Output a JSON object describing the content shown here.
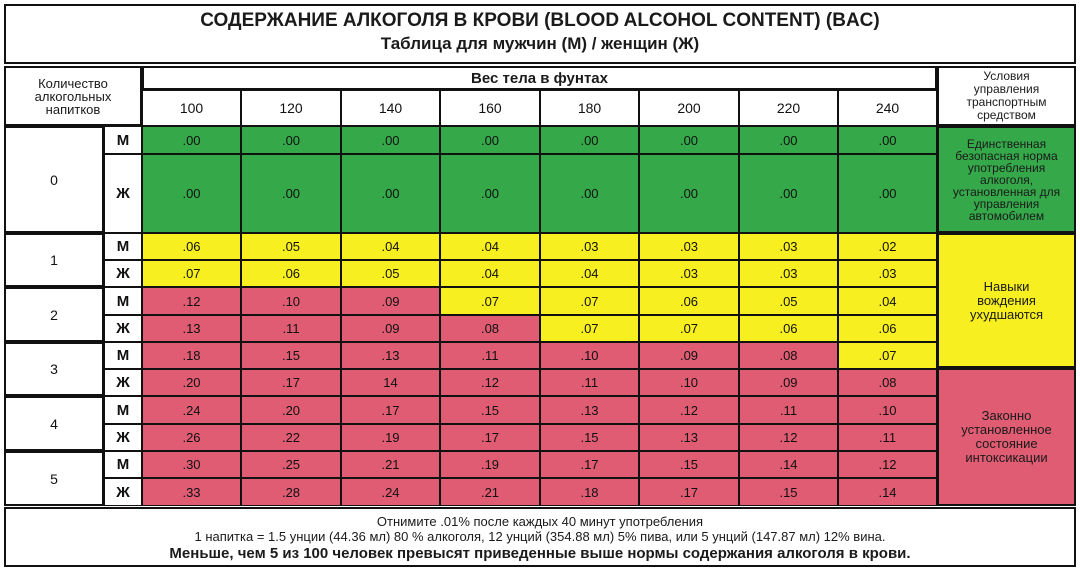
{
  "title": "СОДЕРЖАНИЕ АЛКОГОЛЯ В КРОВИ (BLOOD ALCOHOL CONTENT) (BAC)",
  "subtitle": "Таблица для мужчин (М) / женщин (Ж)",
  "header": {
    "drinks": "Количество алкогольных напитков",
    "weight": "Вес тела в фунтах",
    "conditions": "Условия управления транспортным средством",
    "weights": [
      "100",
      "120",
      "140",
      "160",
      "180",
      "200",
      "220",
      "240"
    ]
  },
  "gender_labels": [
    "М",
    "Ж"
  ],
  "rows": [
    {
      "drinks": "0",
      "m": [
        ".00",
        ".00",
        ".00",
        ".00",
        ".00",
        ".00",
        ".00",
        ".00"
      ],
      "f": [
        ".00",
        ".00",
        ".00",
        ".00",
        ".00",
        ".00",
        ".00",
        ".00"
      ]
    },
    {
      "drinks": "1",
      "m": [
        ".06",
        ".05",
        ".04",
        ".04",
        ".03",
        ".03",
        ".03",
        ".02"
      ],
      "f": [
        ".07",
        ".06",
        ".05",
        ".04",
        ".04",
        ".03",
        ".03",
        ".03"
      ]
    },
    {
      "drinks": "2",
      "m": [
        ".12",
        ".10",
        ".09",
        ".07",
        ".07",
        ".06",
        ".05",
        ".04"
      ],
      "f": [
        ".13",
        ".11",
        ".09",
        ".08",
        ".07",
        ".07",
        ".06",
        ".06"
      ]
    },
    {
      "drinks": "3",
      "m": [
        ".18",
        ".15",
        ".13",
        ".11",
        ".10",
        ".09",
        ".08",
        ".07"
      ],
      "f": [
        ".20",
        ".17",
        "14",
        ".12",
        ".11",
        ".10",
        ".09",
        ".08"
      ]
    },
    {
      "drinks": "4",
      "m": [
        ".24",
        ".20",
        ".17",
        ".15",
        ".13",
        ".12",
        ".11",
        ".10"
      ],
      "f": [
        ".26",
        ".22",
        ".19",
        ".17",
        ".15",
        ".13",
        ".12",
        ".11"
      ]
    },
    {
      "drinks": "5",
      "m": [
        ".30",
        ".25",
        ".21",
        ".19",
        ".17",
        ".15",
        ".14",
        ".12"
      ],
      "f": [
        ".33",
        ".28",
        ".24",
        ".21",
        ".18",
        ".17",
        ".15",
        ".14"
      ]
    }
  ],
  "zones": {
    "green": "Единственная безопасная норма употребления алкоголя, установленная для управления автомобилем",
    "yellow": "Навыки вождения ухудшаются",
    "red": "Законно установленное состояние интоксикации"
  },
  "footer": {
    "line1": "Отнимите .01% после каждых 40 минут употребления",
    "line2": "1 напитка = 1.5 унции (44.36 мл) 80 % алкоголя, 12 унций (354.88 мл) 5% пива, или 5 унций (147.87 мл) 12% вина.",
    "line3": "Меньше, чем 5 из 100 человек превысят приведенные выше нормы содержания алкоголя в крови."
  },
  "colors": {
    "green": "#35a84a",
    "yellow": "#f7ef1f",
    "red": "#df5c73"
  },
  "zone_map": [
    {
      "m": [
        "g",
        "g",
        "g",
        "g",
        "g",
        "g",
        "g",
        "g"
      ],
      "f": [
        "g",
        "g",
        "g",
        "g",
        "g",
        "g",
        "g",
        "g"
      ]
    },
    {
      "m": [
        "y",
        "y",
        "y",
        "y",
        "y",
        "y",
        "y",
        "y"
      ],
      "f": [
        "y",
        "y",
        "y",
        "y",
        "y",
        "y",
        "y",
        "y"
      ]
    },
    {
      "m": [
        "r",
        "r",
        "r",
        "y",
        "y",
        "y",
        "y",
        "y"
      ],
      "f": [
        "r",
        "r",
        "r",
        "r",
        "y",
        "y",
        "y",
        "y"
      ]
    },
    {
      "m": [
        "r",
        "r",
        "r",
        "r",
        "r",
        "r",
        "r",
        "y"
      ],
      "f": [
        "r",
        "r",
        "r",
        "r",
        "r",
        "r",
        "r",
        "r"
      ]
    },
    {
      "m": [
        "r",
        "r",
        "r",
        "r",
        "r",
        "r",
        "r",
        "r"
      ],
      "f": [
        "r",
        "r",
        "r",
        "r",
        "r",
        "r",
        "r",
        "r"
      ]
    },
    {
      "m": [
        "r",
        "r",
        "r",
        "r",
        "r",
        "r",
        "r",
        "r"
      ],
      "f": [
        "r",
        "r",
        "r",
        "r",
        "r",
        "r",
        "r",
        "r"
      ]
    }
  ]
}
